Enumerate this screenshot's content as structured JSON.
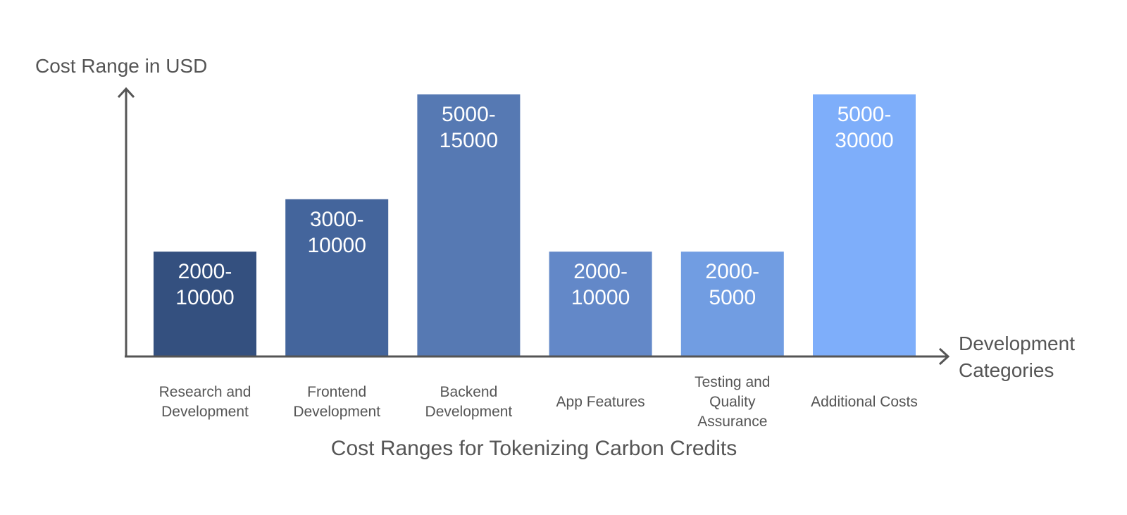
{
  "chart_data": {
    "type": "bar",
    "title": "Cost Ranges for Tokenizing Carbon Credits",
    "ylabel": "Cost Range in USD",
    "xlabel": [
      "Development",
      "Categories"
    ],
    "categories": [
      [
        "Research and",
        "Development"
      ],
      [
        "Frontend",
        "Development"
      ],
      [
        "Backend",
        "Development"
      ],
      [
        "App Features"
      ],
      [
        "Testing and",
        "Quality",
        "Assurance"
      ],
      [
        "Additional Costs"
      ]
    ],
    "value_labels": [
      [
        "2000-",
        "10000"
      ],
      [
        "3000-",
        "10000"
      ],
      [
        "5000-",
        "15000"
      ],
      [
        "2000-",
        "10000"
      ],
      [
        "2000-",
        "5000"
      ],
      [
        "5000-",
        "30000"
      ]
    ],
    "ranges": [
      {
        "low": 2000,
        "high": 10000
      },
      {
        "low": 3000,
        "high": 10000
      },
      {
        "low": 5000,
        "high": 15000
      },
      {
        "low": 2000,
        "high": 10000
      },
      {
        "low": 2000,
        "high": 5000
      },
      {
        "low": 5000,
        "high": 30000
      }
    ],
    "bar_heights_relative": [
      0.4,
      0.6,
      1.0,
      0.4,
      0.4,
      1.0
    ],
    "colors": [
      "#34507f",
      "#44659c",
      "#5679b3",
      "#6388c8",
      "#719de2",
      "#7eaefa"
    ],
    "grid": false,
    "legend": "none"
  }
}
